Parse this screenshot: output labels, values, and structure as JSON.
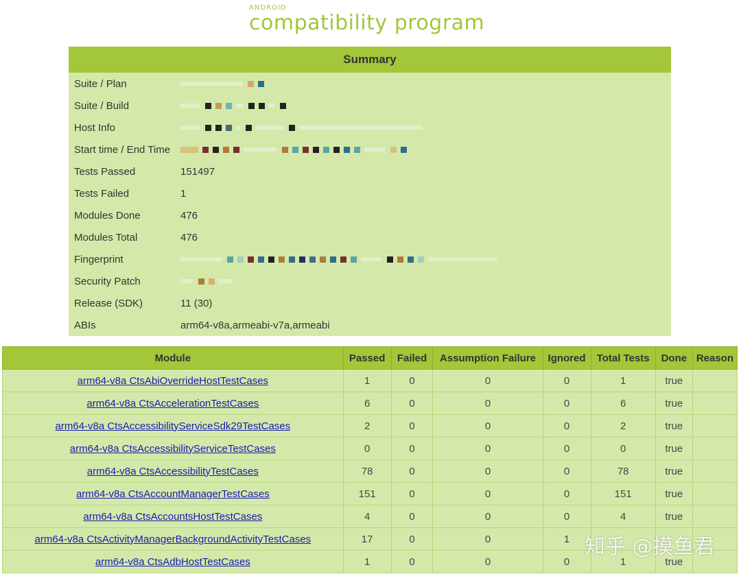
{
  "logo": {
    "small": "ANDROID",
    "big": "compatibility program"
  },
  "summary": {
    "title": "Summary",
    "rows": [
      {
        "label": "Suite / Plan",
        "value": ""
      },
      {
        "label": "Suite / Build",
        "value": ""
      },
      {
        "label": "Host Info",
        "value": ""
      },
      {
        "label": "Start time / End Time",
        "value": ""
      },
      {
        "label": "Tests Passed",
        "value": "151497"
      },
      {
        "label": "Tests Failed",
        "value": "1"
      },
      {
        "label": "Modules Done",
        "value": "476"
      },
      {
        "label": "Modules Total",
        "value": "476"
      },
      {
        "label": "Fingerprint",
        "value": ""
      },
      {
        "label": "Security Patch",
        "value": ""
      },
      {
        "label": "Release (SDK)",
        "value": "11 (30)"
      },
      {
        "label": "ABIs",
        "value": "arm64-v8a,armeabi-v7a,armeabi"
      }
    ]
  },
  "table": {
    "headers": [
      "Module",
      "Passed",
      "Failed",
      "Assumption Failure",
      "Ignored",
      "Total Tests",
      "Done",
      "Reason"
    ],
    "rows": [
      [
        "arm64-v8a CtsAbiOverrideHostTestCases",
        "1",
        "0",
        "0",
        "0",
        "1",
        "true",
        ""
      ],
      [
        "arm64-v8a CtsAccelerationTestCases",
        "6",
        "0",
        "0",
        "0",
        "6",
        "true",
        ""
      ],
      [
        "arm64-v8a CtsAccessibilityServiceSdk29TestCases",
        "2",
        "0",
        "0",
        "0",
        "2",
        "true",
        ""
      ],
      [
        "arm64-v8a CtsAccessibilityServiceTestCases",
        "0",
        "0",
        "0",
        "0",
        "0",
        "true",
        ""
      ],
      [
        "arm64-v8a CtsAccessibilityTestCases",
        "78",
        "0",
        "0",
        "0",
        "78",
        "true",
        ""
      ],
      [
        "arm64-v8a CtsAccountManagerTestCases",
        "151",
        "0",
        "0",
        "0",
        "151",
        "true",
        ""
      ],
      [
        "arm64-v8a CtsAccountsHostTestCases",
        "4",
        "0",
        "0",
        "0",
        "4",
        "true",
        ""
      ],
      [
        "arm64-v8a CtsActivityManagerBackgroundActivityTestCases",
        "17",
        "0",
        "0",
        "1",
        "",
        "",
        ""
      ],
      [
        "arm64-v8a CtsAdbHostTestCases",
        "1",
        "0",
        "0",
        "0",
        "1",
        "true",
        ""
      ]
    ]
  },
  "watermark": "知乎 @摸鱼君",
  "colors": {
    "header": "#a4c639",
    "cell": "#d4e9a9",
    "link": "#1a1ab0"
  }
}
